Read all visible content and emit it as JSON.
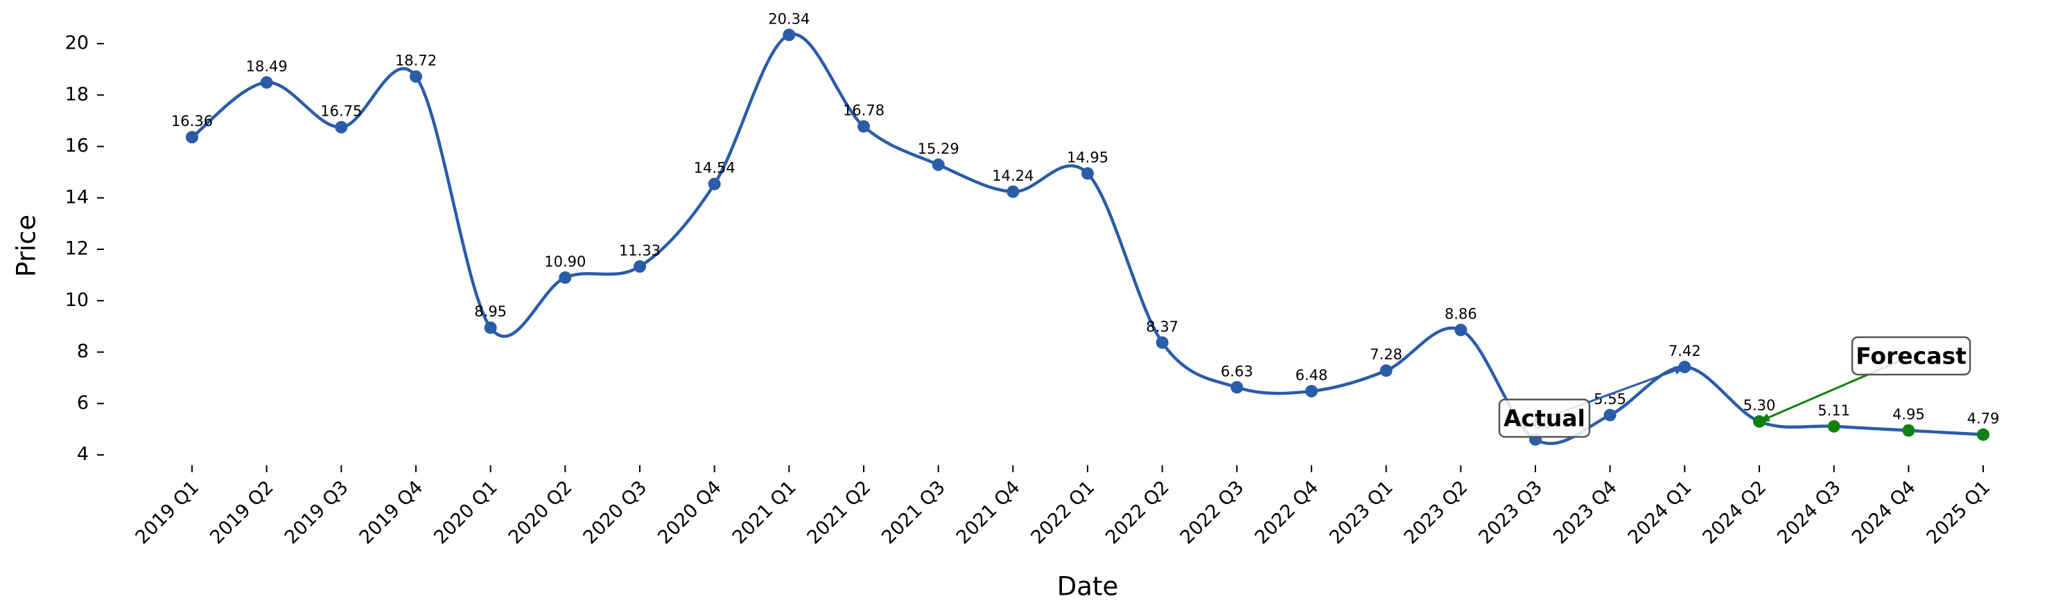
{
  "chart_data": {
    "type": "line",
    "x_label": "Date",
    "y_label": "Price",
    "categories": [
      "2019 Q1",
      "2019 Q2",
      "2019 Q3",
      "2019 Q4",
      "2020 Q1",
      "2020 Q2",
      "2020 Q3",
      "2020 Q4",
      "2021 Q1",
      "2021 Q2",
      "2021 Q3",
      "2021 Q4",
      "2022 Q1",
      "2022 Q2",
      "2022 Q3",
      "2022 Q4",
      "2023 Q1",
      "2023 Q2",
      "2023 Q3",
      "2023 Q4",
      "2024 Q1",
      "2024 Q2",
      "2024 Q3",
      "2024 Q4",
      "2025 Q1"
    ],
    "line_color": "#2a5ca8",
    "series": [
      {
        "name": "Actual",
        "color": "#2a5ca8",
        "values": [
          16.36,
          18.49,
          16.75,
          18.72,
          8.95,
          10.9,
          11.33,
          14.54,
          20.34,
          16.78,
          15.29,
          14.24,
          14.95,
          8.37,
          6.63,
          6.48,
          7.28,
          8.86,
          4.6,
          5.55,
          7.42,
          null,
          null,
          null,
          null
        ],
        "value_labels": [
          "16.36",
          "18.49",
          "16.75",
          "18.72",
          "8.95",
          "10.90",
          "11.33",
          "14.54",
          "20.34",
          "16.78",
          "15.29",
          "14.24",
          "14.95",
          "8.37",
          "6.63",
          "6.48",
          "7.28",
          "8.86",
          "4.60",
          "5.55",
          "7.42",
          null,
          null,
          null,
          null
        ]
      },
      {
        "name": "Forecast",
        "color": "#118011",
        "values": [
          null,
          null,
          null,
          null,
          null,
          null,
          null,
          null,
          null,
          null,
          null,
          null,
          null,
          null,
          null,
          null,
          null,
          null,
          null,
          null,
          null,
          5.3,
          5.11,
          4.95,
          4.79
        ],
        "value_labels": [
          null,
          null,
          null,
          null,
          null,
          null,
          null,
          null,
          null,
          null,
          null,
          null,
          null,
          null,
          null,
          null,
          null,
          null,
          null,
          null,
          null,
          "5.30",
          "5.11",
          "4.95",
          "4.79"
        ]
      }
    ],
    "ylim": [
      3.2,
      21.2
    ],
    "yticks": [
      4,
      6,
      8,
      10,
      12,
      14,
      16,
      18,
      20
    ],
    "grid": false
  }
}
